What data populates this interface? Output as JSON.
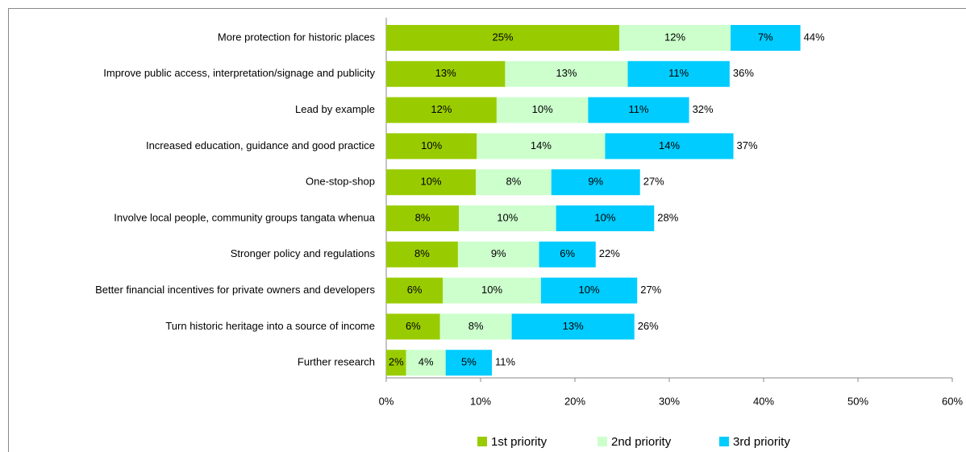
{
  "chart_data": {
    "type": "stacked-bar-horizontal",
    "categories": [
      "More protection  for historic places",
      "Improve public access, interpretation/signage and publicity",
      "Lead by example",
      "Increased education, guidance and good practice",
      "One-stop-shop",
      "Involve local people, community groups tangata whenua",
      "Stronger policy and regulations",
      "Better financial incentives for private owners and developers",
      "Turn historic heritage into a source of income",
      "Further research"
    ],
    "series": [
      {
        "name": "1st priority",
        "color": "#99cc00",
        "values": [
          24.7,
          12.6,
          11.7,
          9.6,
          9.5,
          7.7,
          7.6,
          6.0,
          5.7,
          2.1
        ],
        "value_labels": [
          "25%",
          "13%",
          "12%",
          "10%",
          "10%",
          "8%",
          "8%",
          "6%",
          "6%",
          "2%"
        ]
      },
      {
        "name": "2nd priority",
        "color": "#ccffcc",
        "values": [
          11.8,
          13.0,
          9.7,
          13.6,
          8.0,
          10.3,
          8.6,
          10.4,
          7.6,
          4.2
        ],
        "value_labels": [
          "12%",
          "13%",
          "10%",
          "14%",
          "8%",
          "10%",
          "9%",
          "10%",
          "8%",
          "4%"
        ]
      },
      {
        "name": "3rd priority",
        "color": "#00ccff",
        "values": [
          7.4,
          10.8,
          10.7,
          13.6,
          9.4,
          10.4,
          6.0,
          10.2,
          13.0,
          4.9
        ],
        "value_labels": [
          "7%",
          "11%",
          "11%",
          "14%",
          "9%",
          "10%",
          "6%",
          "10%",
          "13%",
          "5%"
        ]
      }
    ],
    "total_labels": [
      "44%",
      "36%",
      "32%",
      "37%",
      "27%",
      "28%",
      "22%",
      "27%",
      "26%",
      "11%"
    ],
    "xlim": [
      0,
      60
    ],
    "xticks": [
      {
        "value": 0,
        "label": "0%"
      },
      {
        "value": 10,
        "label": "10%"
      },
      {
        "value": 20,
        "label": "20%"
      },
      {
        "value": 30,
        "label": "30%"
      },
      {
        "value": 40,
        "label": "40%"
      },
      {
        "value": 50,
        "label": "50%"
      },
      {
        "value": 60,
        "label": "60%"
      }
    ],
    "legend": "bottom"
  }
}
